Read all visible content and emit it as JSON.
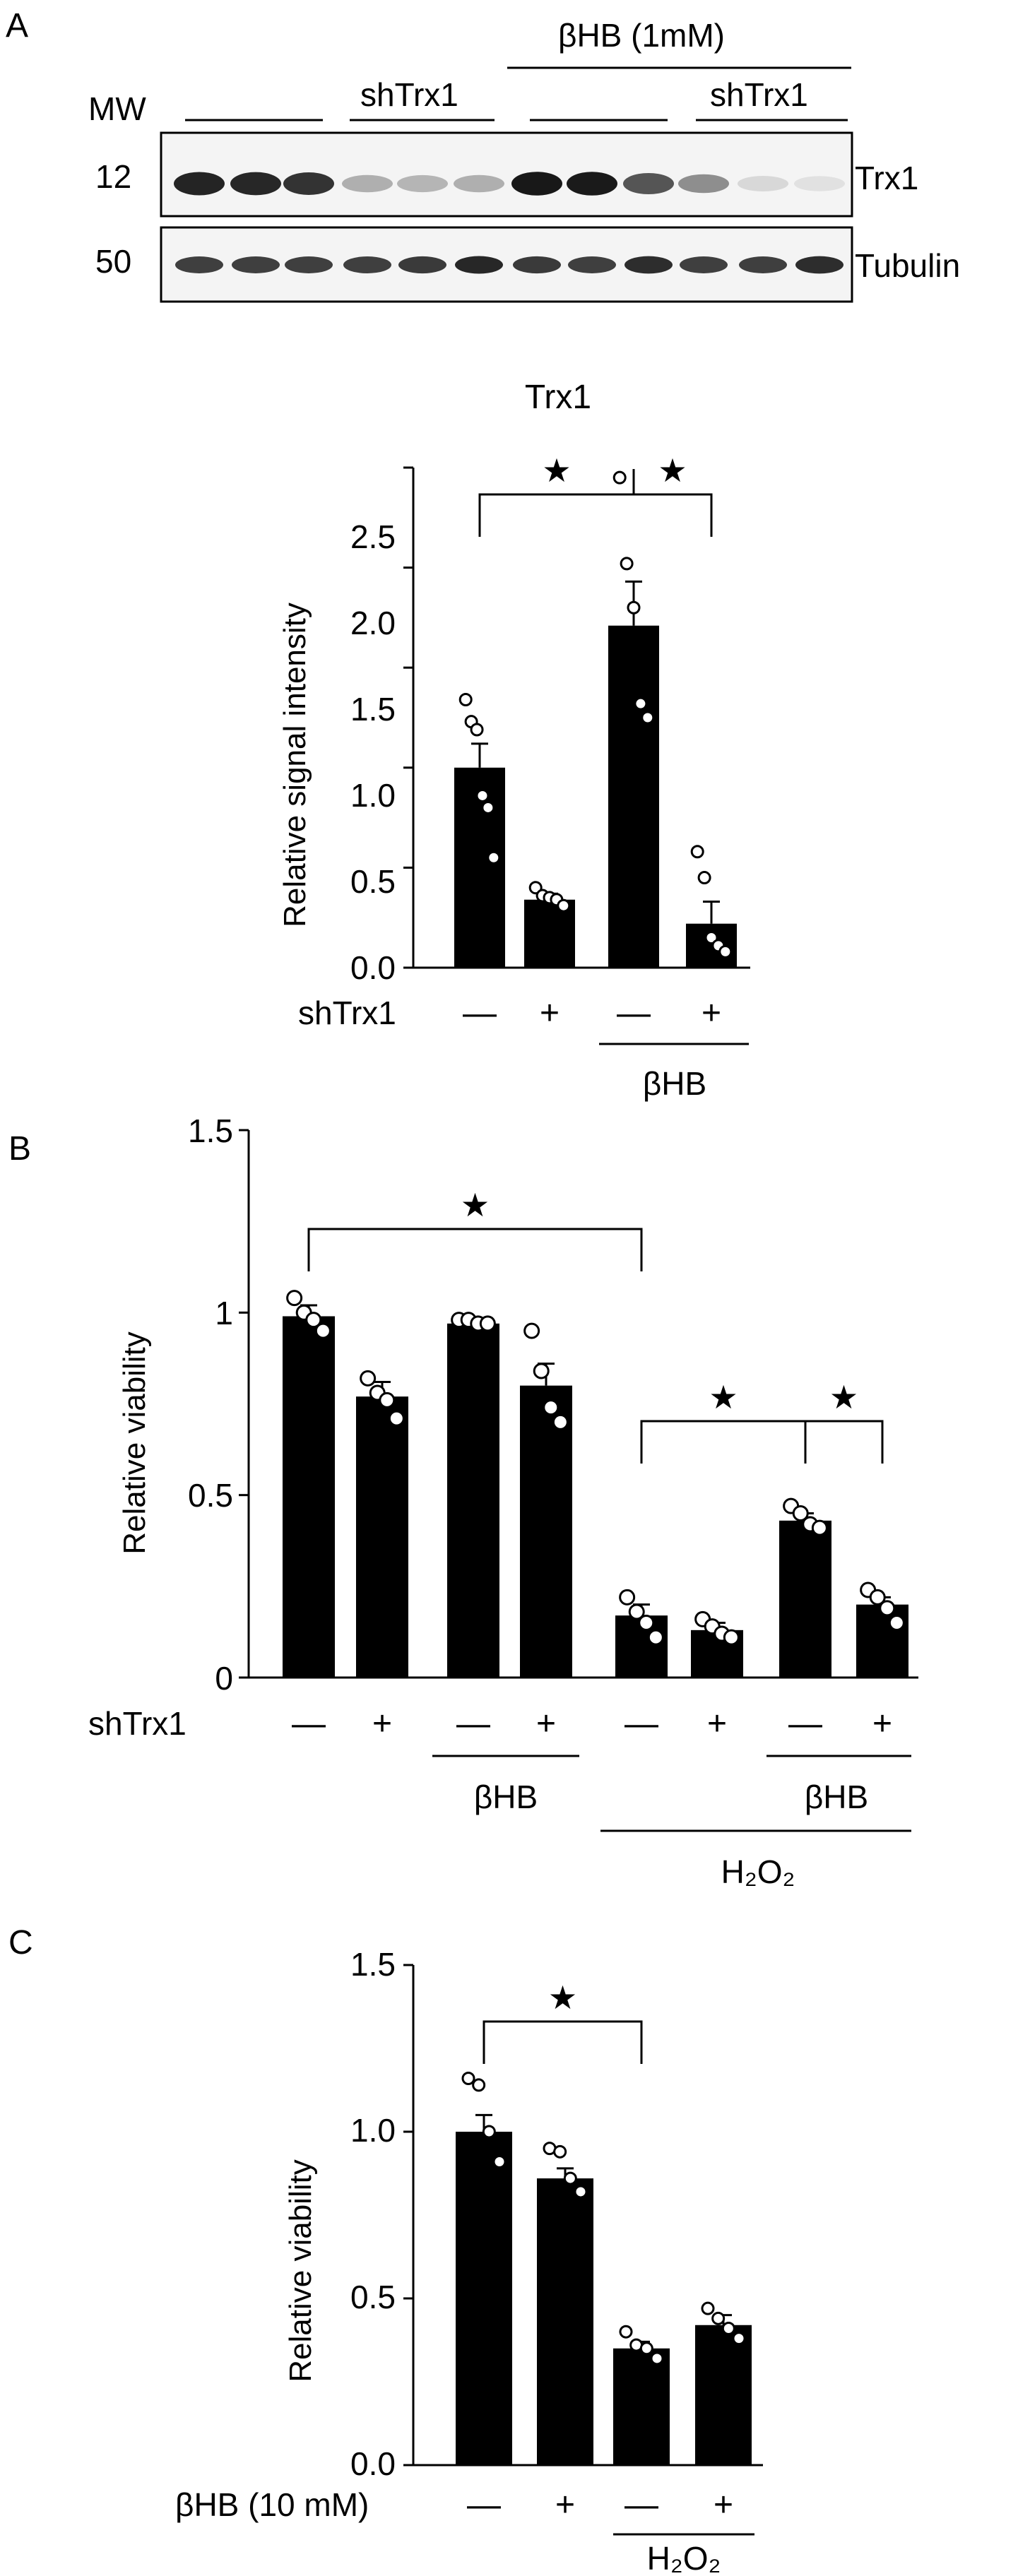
{
  "panels": {
    "a": {
      "letter": "A"
    },
    "b": {
      "letter": "B"
    },
    "c": {
      "letter": "C"
    }
  },
  "blot": {
    "mw_label": "MW",
    "shtrx1_label": "shTrx1",
    "treatment_label": "βHB (1mM)",
    "mw_markers": [
      "12",
      "50"
    ],
    "band_labels": [
      "Trx1",
      "Tubulin"
    ],
    "trx1_band_intensity": [
      0.92,
      0.9,
      0.85,
      0.3,
      0.28,
      0.3,
      0.97,
      0.96,
      0.7,
      0.45,
      0.12,
      0.08
    ],
    "tubulin_band_intensity": [
      0.8,
      0.8,
      0.8,
      0.8,
      0.82,
      0.9,
      0.82,
      0.8,
      0.88,
      0.8,
      0.8,
      0.88
    ],
    "colors": {
      "band": "#111111",
      "background": "#f4f4f4"
    }
  },
  "chart_data": [
    {
      "type": "bar",
      "panel": "A",
      "title": "Trx1",
      "ylabel": "Relative signal intensity",
      "xlabel": "",
      "ylim": [
        0,
        2.5
      ],
      "yticks": [
        "0.0",
        "0.5",
        "1.0",
        "1.5",
        "2.0",
        "2.5"
      ],
      "row_label": "shTrx1",
      "categories": [
        "—",
        "+",
        "—",
        "+"
      ],
      "values": [
        1.0,
        0.34,
        1.71,
        0.22
      ],
      "errors": [
        0.12,
        0.03,
        0.22,
        0.11
      ],
      "points": [
        [
          1.34,
          1.23,
          1.19,
          0.86,
          0.8,
          0.55
        ],
        [
          0.4,
          0.36,
          0.35,
          0.34,
          0.31
        ],
        [
          2.45,
          2.02,
          1.8,
          1.32,
          1.25
        ],
        [
          0.58,
          0.45,
          0.15,
          0.11,
          0.08
        ]
      ],
      "groups": [
        {
          "label": "βHB",
          "span": [
            2,
            3
          ]
        }
      ],
      "significance": [
        {
          "between": [
            0,
            2
          ],
          "label": "★"
        },
        {
          "between": [
            2,
            3
          ],
          "label": "★"
        }
      ],
      "grid": false,
      "colors": {
        "bar": "#000000",
        "point_fill": "#ffffff"
      }
    },
    {
      "type": "bar",
      "panel": "B",
      "title": "",
      "ylabel": "Relative viability",
      "xlabel": "",
      "ylim": [
        0,
        1.5
      ],
      "yticks": [
        "0",
        "0.5",
        "1",
        "1.5"
      ],
      "row_label": "shTrx1",
      "categories": [
        "—",
        "+",
        "—",
        "+",
        "—",
        "+",
        "—",
        "+"
      ],
      "values": [
        0.99,
        0.77,
        0.97,
        0.8,
        0.17,
        0.13,
        0.43,
        0.2
      ],
      "errors": [
        0.03,
        0.04,
        0.01,
        0.06,
        0.03,
        0.02,
        0.02,
        0.02
      ],
      "points": [
        [
          1.04,
          1.0,
          0.98,
          0.95
        ],
        [
          0.82,
          0.78,
          0.76,
          0.71
        ],
        [
          0.98,
          0.98,
          0.97,
          0.97
        ],
        [
          0.95,
          0.84,
          0.74,
          0.7
        ],
        [
          0.22,
          0.18,
          0.15,
          0.11
        ],
        [
          0.16,
          0.14,
          0.12,
          0.11
        ],
        [
          0.47,
          0.45,
          0.42,
          0.41
        ],
        [
          0.24,
          0.22,
          0.19,
          0.15
        ]
      ],
      "groups": [
        {
          "label": "βHB",
          "span": [
            2,
            3
          ]
        },
        {
          "label": "βHB",
          "span": [
            6,
            7
          ]
        },
        {
          "label": "H₂O₂",
          "span": [
            4,
            7
          ]
        }
      ],
      "significance": [
        {
          "between": [
            0,
            4
          ],
          "label": "★"
        },
        {
          "between": [
            4,
            6
          ],
          "label": "★"
        },
        {
          "between": [
            6,
            7
          ],
          "label": "★"
        }
      ],
      "grid": false,
      "colors": {
        "bar": "#000000",
        "point_fill": "#ffffff"
      }
    },
    {
      "type": "bar",
      "panel": "C",
      "title": "",
      "ylabel": "Relative viability",
      "xlabel": "",
      "ylim": [
        0,
        1.5
      ],
      "yticks": [
        "0.0",
        "0.5",
        "1.0",
        "1.5"
      ],
      "row_label": "βHB (10 mM)",
      "categories": [
        "—",
        "+",
        "—",
        "+"
      ],
      "values": [
        1.0,
        0.86,
        0.35,
        0.42
      ],
      "errors": [
        0.05,
        0.03,
        0.02,
        0.03
      ],
      "points": [
        [
          1.16,
          1.14,
          1.0,
          0.91
        ],
        [
          0.95,
          0.94,
          0.86,
          0.82
        ],
        [
          0.4,
          0.36,
          0.35,
          0.32
        ],
        [
          0.47,
          0.44,
          0.41,
          0.38
        ]
      ],
      "groups": [
        {
          "label": "H₂O₂",
          "span": [
            2,
            3
          ]
        }
      ],
      "significance": [
        {
          "between": [
            0,
            2
          ],
          "label": "★"
        }
      ],
      "grid": false,
      "colors": {
        "bar": "#000000",
        "point_fill": "#ffffff"
      }
    }
  ]
}
